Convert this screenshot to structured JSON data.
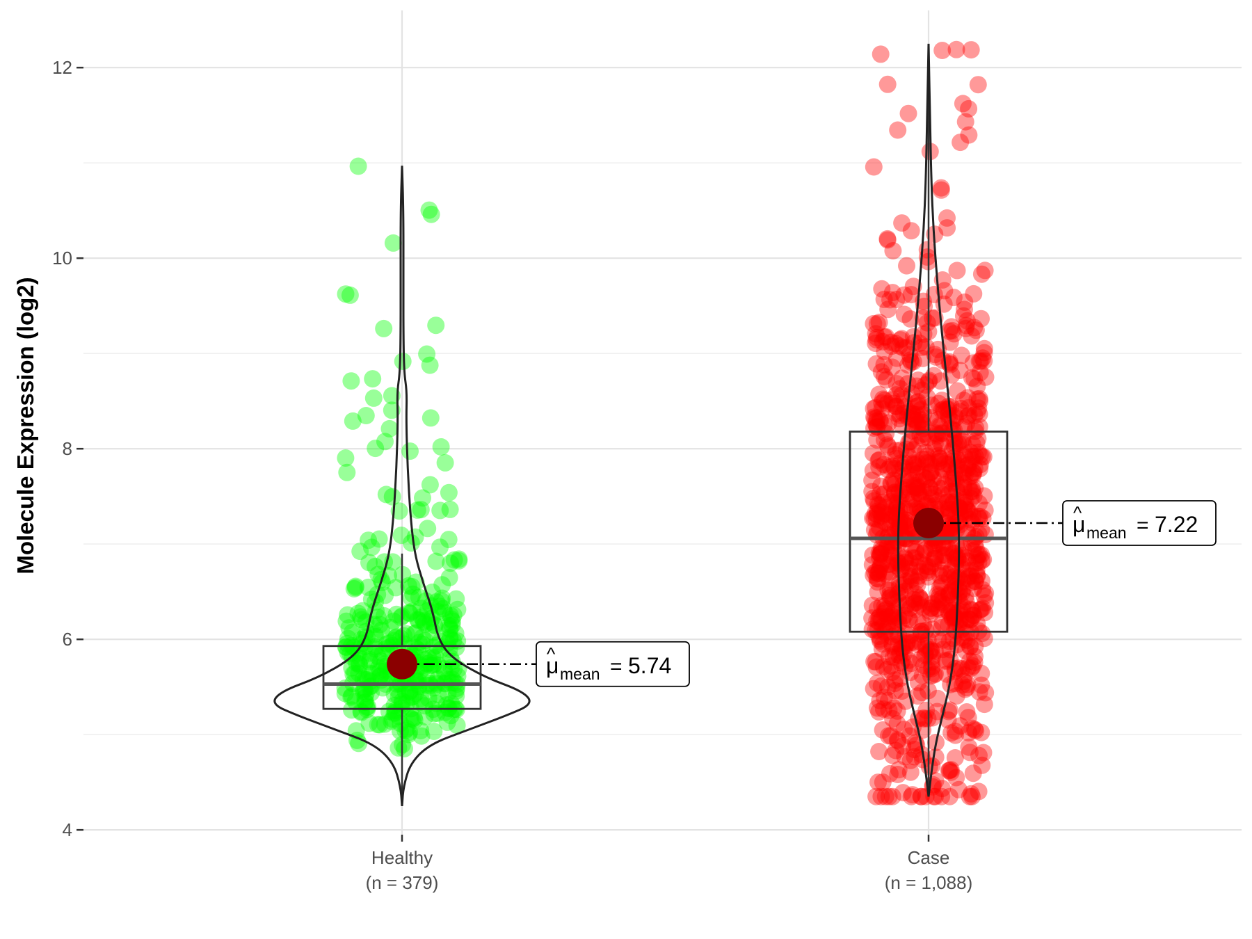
{
  "chart_data": {
    "type": "violin-box-jitter",
    "ylabel": "Molecule Expression (log2)",
    "ylim": [
      3.95,
      12.6
    ],
    "y_ticks": [
      4,
      6,
      8,
      10,
      12
    ],
    "grid": true,
    "groups": [
      {
        "label": "Healthy",
        "n_label": "(n = 379)",
        "n": 379,
        "color": "#00ff00",
        "box": {
          "q1": 5.27,
          "median": 5.53,
          "q3": 5.93,
          "whisker_low": 4.25,
          "whisker_high": 6.9
        },
        "violin_range": [
          4.25,
          10.97
        ],
        "mean": 5.74,
        "mean_label": "5.74"
      },
      {
        "label": "Case",
        "n_label": "(n = 1,088)",
        "n": 1088,
        "color": "#ff0000",
        "box": {
          "q1": 6.08,
          "median": 7.06,
          "q3": 8.18,
          "whisker_low": 4.35,
          "whisker_high": 12.25
        },
        "violin_range": [
          4.35,
          12.25
        ],
        "mean": 7.22,
        "mean_label": "7.22"
      }
    ]
  },
  "style": {
    "mean_point_color": "#8b0000",
    "box_color": "#333333",
    "violin_color": "#222222",
    "grid_color": "#e3e3e3"
  },
  "annotation": {
    "mu_symbol": "μ",
    "hat": "^",
    "subscript": "mean",
    "equals": "="
  }
}
